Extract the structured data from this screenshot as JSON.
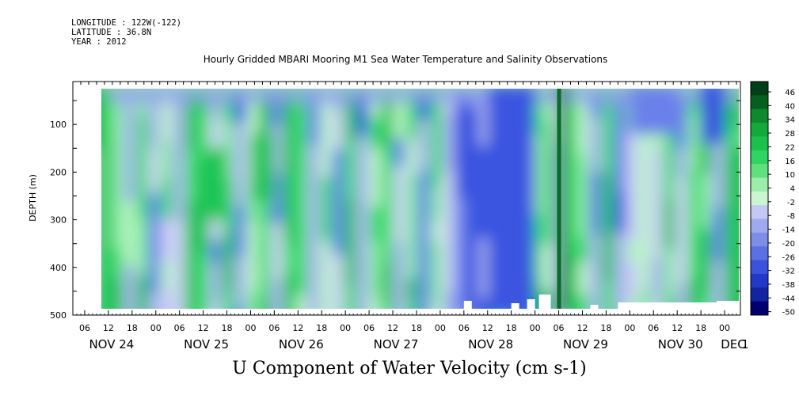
{
  "header": {
    "longitude": "LONGITUDE : 122W(-122)",
    "latitude": "LATITUDE : 36.8N",
    "year": "YEAR : 2012"
  },
  "chart_data": {
    "type": "heatmap",
    "title": "Hourly Gridded MBARI Mooring M1 Sea Water Temperature and Salinity Observations",
    "variable_label": "U Component of Water Velocity (cm s-1)",
    "ylabel": "DEPTH (m)",
    "ylim": [
      500,
      10
    ],
    "y_axis_inverted": true,
    "y_ticks": [
      100,
      200,
      300,
      400,
      500
    ],
    "x_range": [
      "2012-11-24 03:00",
      "2012-12-01 04:00"
    ],
    "x_hour_ticks": [
      "06",
      "12",
      "18",
      "00",
      "06",
      "12",
      "18",
      "00",
      "06",
      "12",
      "18",
      "00",
      "06",
      "12",
      "18",
      "00",
      "06",
      "12",
      "18",
      "00",
      "06",
      "12",
      "18",
      "00",
      "06",
      "12",
      "18",
      "00",
      "06",
      "12",
      "18",
      "00"
    ],
    "x_day_labels": [
      "NOV 24",
      "NOV 25",
      "NOV 26",
      "NOV 27",
      "NOV 28",
      "NOV 29",
      "NOV 30",
      "DEC",
      "1"
    ],
    "colorbar_labels": [
      "46",
      "40",
      "34",
      "28",
      "22",
      "16",
      "10",
      "4",
      "-2",
      "-8",
      "-14",
      "-20",
      "-26",
      "-32",
      "-38",
      "-44",
      "-50"
    ],
    "colorbar_range": [
      -50,
      52
    ],
    "colors": {
      "strong_positive": "#003d19",
      "positive": "#1fd25b",
      "weak_positive": "#8ef0a5",
      "weak_negative": "#aab3f0",
      "negative": "#4a62e2",
      "strong_negative": "#000050"
    },
    "approx_regions": [
      {
        "time": "NOV 24 00-12",
        "depth": "20-150 m",
        "u": 20
      },
      {
        "time": "NOV 25 12-18",
        "depth": "150-300 m",
        "u": 22
      },
      {
        "time": "NOV 26 00-06",
        "depth": "120-260 m",
        "u": 24
      },
      {
        "time": "NOV 28 12 - NOV 29 00",
        "depth": "20-500 m",
        "u": -24
      },
      {
        "time": "NOV 29 06",
        "depth": "10-500 m",
        "u": 46
      },
      {
        "time": "NOV 30 00-12",
        "depth": "20-120 m",
        "u": -20
      },
      {
        "time": "NOV 30 18 - DEC 1 00",
        "depth": "10-140 m",
        "u": -32
      },
      {
        "time": "DEC 1 00-06",
        "depth": "150-500 m",
        "u": 22
      }
    ],
    "grid": false,
    "legend": "colorbar right"
  }
}
